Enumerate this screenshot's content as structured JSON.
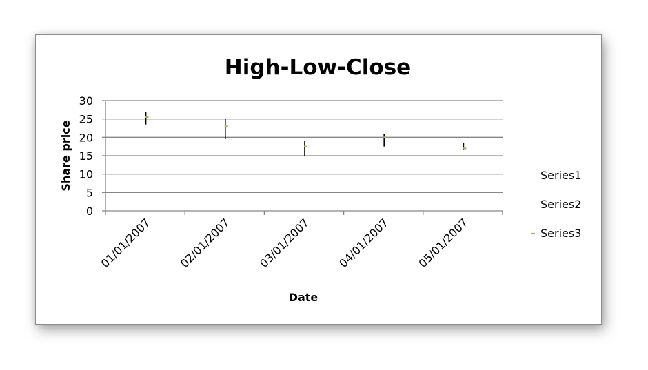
{
  "chart_data": {
    "type": "high-low-close",
    "title": "High-Low-Close",
    "xlabel": "Date",
    "ylabel": "Share price",
    "categories": [
      "01/01/2007",
      "02/01/2007",
      "03/01/2007",
      "04/01/2007",
      "05/01/2007"
    ],
    "ylim": [
      0,
      30
    ],
    "yticks": [
      "0",
      "5",
      "10",
      "15",
      "20",
      "25",
      "30"
    ],
    "grid": true,
    "legend_position": "right",
    "series": [
      {
        "name": "Series1",
        "values": [
          27,
          25,
          19,
          21,
          18.5
        ]
      },
      {
        "name": "Series2",
        "values": [
          23.5,
          19.5,
          15,
          17.5,
          16.5
        ]
      },
      {
        "name": "Series3",
        "values": [
          25.5,
          23,
          17.5,
          20,
          17
        ]
      }
    ],
    "colors": {
      "hilo": "#000000",
      "close": "#9bbb59",
      "grid": "#868686"
    }
  }
}
